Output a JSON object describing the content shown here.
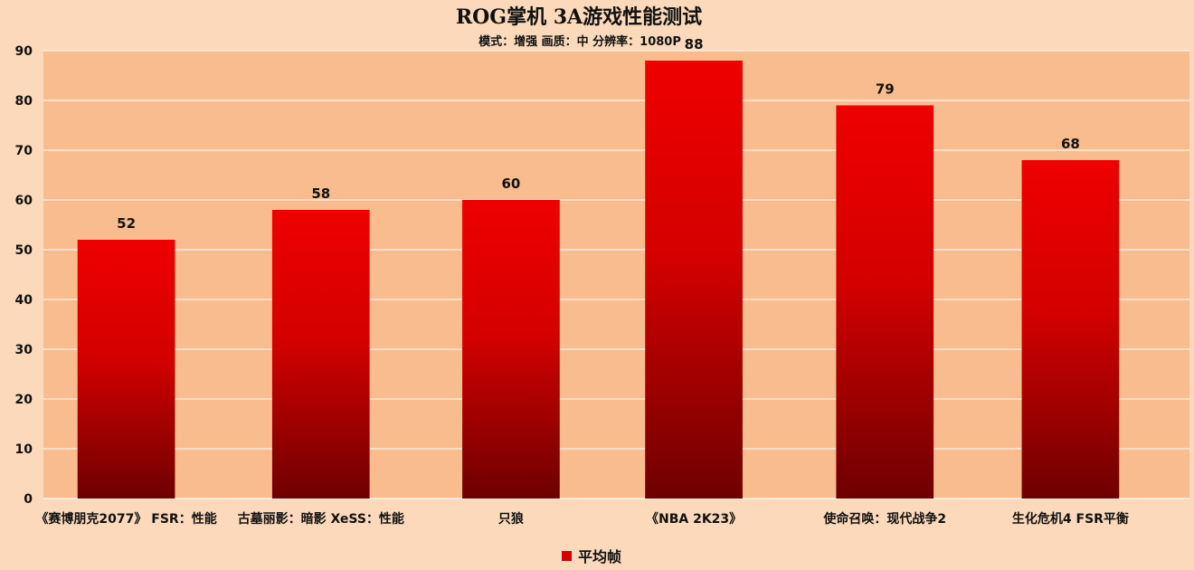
{
  "chart_data": {
    "type": "bar",
    "title": "ROG掌机 3A游戏性能测试",
    "subtitle": "模式：增强 画质：中 分辨率：1080P",
    "categories": [
      "《赛博朋克2077》 FSR：性能",
      "古墓丽影：暗影 XeSS：性能",
      "只狼",
      "《NBA 2K23》",
      "使命召唤：现代战争2",
      "生化危机4 FSR平衡"
    ],
    "series": [
      {
        "name": "平均帧",
        "values": [
          52,
          58,
          60,
          88,
          79,
          68
        ]
      }
    ],
    "ylim": [
      0,
      90
    ],
    "yticks": [
      0,
      10,
      20,
      30,
      40,
      50,
      60,
      70,
      80,
      90
    ],
    "xlabel": "",
    "ylabel": "",
    "grid": true,
    "legend": "bottom",
    "colors": {
      "background": "#fcd9bb",
      "plot_area": "#f9bc8f",
      "gridline": "#ffffff",
      "bar_top": "#ee0000",
      "bar_mid": "#d40000",
      "bar_bottom": "#6e0000",
      "legend_marker": "#d60000"
    }
  }
}
